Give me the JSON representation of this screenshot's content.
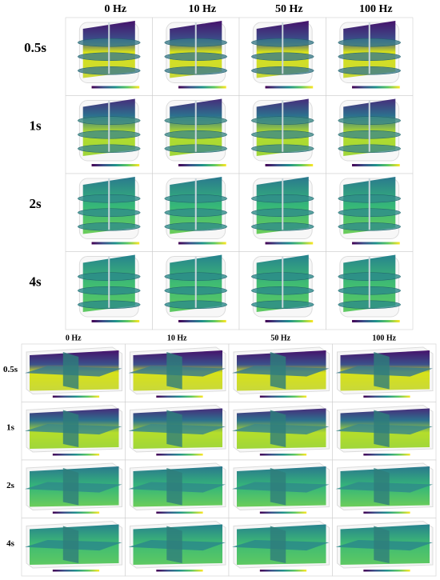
{
  "top_panel": {
    "columns": [
      "0 Hz",
      "10 Hz",
      "50 Hz",
      "100 Hz"
    ],
    "rows": [
      "0.5s",
      "1s",
      "2s",
      "4s"
    ]
  },
  "bottom_panel": {
    "columns": [
      "0 Hz",
      "10 Hz",
      "50 Hz",
      "100 Hz"
    ],
    "rows": [
      "0.5s",
      "1s",
      "2s",
      "4s"
    ]
  }
}
